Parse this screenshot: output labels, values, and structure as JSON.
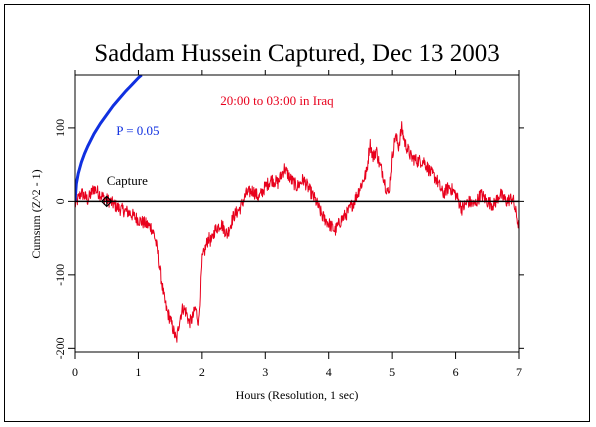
{
  "chart_data": {
    "type": "line",
    "title": "Saddam Hussein Captured, Dec 13 2003",
    "subtitle": "20:00 to 03:00 in Iraq",
    "xlabel": "Hours (Resolution, 1 sec)",
    "ylabel": "Cumsum (Z^2 - 1)",
    "xlim": [
      0,
      7
    ],
    "ylim": [
      -205,
      172
    ],
    "x_ticks": [
      0,
      1,
      2,
      3,
      4,
      5,
      6,
      7
    ],
    "x_tick_labels": [
      "0",
      "1",
      "2",
      "3",
      "4",
      "5",
      "6",
      "7"
    ],
    "y_ticks": [
      100,
      0,
      -100,
      -200
    ],
    "y_tick_labels": [
      "100",
      "0",
      "-100",
      "-200"
    ],
    "grid": false,
    "series": [
      {
        "color": "#e8001c",
        "x": [
          0,
          0.1,
          0.2,
          0.3,
          0.45,
          0.55,
          0.7,
          0.85,
          1.0,
          1.1,
          1.2,
          1.25,
          1.3,
          1.35,
          1.4,
          1.45,
          1.5,
          1.55,
          1.6,
          1.65,
          1.7,
          1.75,
          1.8,
          1.85,
          1.9,
          1.95,
          2.0,
          2.05,
          2.1,
          2.15,
          2.2,
          2.3,
          2.4,
          2.5,
          2.6,
          2.7,
          2.8,
          2.9,
          3.0,
          3.1,
          3.2,
          3.3,
          3.4,
          3.5,
          3.6,
          3.7,
          3.8,
          3.9,
          4.0,
          4.1,
          4.2,
          4.3,
          4.4,
          4.5,
          4.6,
          4.65,
          4.7,
          4.75,
          4.8,
          4.85,
          4.9,
          4.95,
          5.0,
          5.05,
          5.1,
          5.15,
          5.2,
          5.25,
          5.3,
          5.4,
          5.5,
          5.6,
          5.7,
          5.8,
          5.9,
          6.0,
          6.1,
          6.2,
          6.3,
          6.4,
          6.5,
          6.6,
          6.7,
          6.8,
          6.9,
          7.0
        ],
        "y": [
          -5,
          12,
          2,
          18,
          5,
          0,
          -10,
          -15,
          -25,
          -30,
          -35,
          -45,
          -65,
          -100,
          -130,
          -150,
          -160,
          -175,
          -190,
          -160,
          -145,
          -150,
          -165,
          -160,
          -145,
          -165,
          -80,
          -65,
          -50,
          -55,
          -40,
          -30,
          -45,
          -20,
          -10,
          10,
          15,
          5,
          20,
          30,
          25,
          45,
          30,
          20,
          30,
          15,
          0,
          -20,
          -30,
          -40,
          -25,
          -15,
          0,
          20,
          40,
          80,
          60,
          70,
          50,
          40,
          20,
          10,
          60,
          90,
          75,
          100,
          80,
          70,
          60,
          55,
          55,
          40,
          30,
          10,
          20,
          10,
          -10,
          0,
          -5,
          10,
          0,
          -5,
          10,
          0,
          5,
          -35
        ]
      },
      {
        "name": "P = 0.05",
        "color": "#1030e0",
        "x": [
          0,
          0.02,
          0.05,
          0.1,
          0.15,
          0.2,
          0.3,
          0.4,
          0.5,
          0.6,
          0.7,
          0.8,
          0.9,
          1.0,
          1.05
        ],
        "y": [
          0,
          24,
          38,
          53,
          65,
          75,
          92,
          106,
          118,
          130,
          140,
          150,
          159,
          168,
          172
        ]
      },
      {
        "name": "baseline",
        "color": "#000000",
        "x": [
          0,
          7
        ],
        "y": [
          0,
          0
        ]
      }
    ],
    "annotations": [
      {
        "text": "P = 0.05",
        "x": 0.65,
        "y": 90,
        "color": "#1030e0"
      },
      {
        "text": "Capture",
        "x": 0.5,
        "y": 22,
        "color": "#000000"
      }
    ],
    "markers": [
      {
        "name": "capture-marker",
        "x": 0.5,
        "y": 0
      }
    ]
  }
}
